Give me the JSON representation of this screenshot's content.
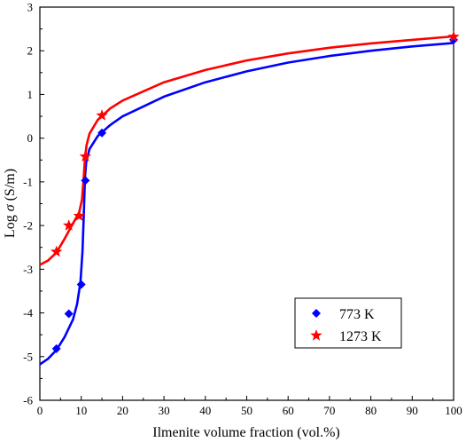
{
  "chart_data": {
    "type": "scatter",
    "xlabel": "Ilmenite volume fraction (vol.%)",
    "ylabel_prefix": "Log ",
    "ylabel_symbol": "σ",
    "ylabel_suffix": " (S/m)",
    "xlim": [
      0,
      100
    ],
    "ylim": [
      -6,
      3
    ],
    "xticks": [
      0,
      10,
      20,
      30,
      40,
      50,
      60,
      70,
      80,
      90,
      100
    ],
    "yticks": [
      -6,
      -5,
      -4,
      -3,
      -2,
      -1,
      0,
      1,
      2,
      3
    ],
    "grid": false,
    "legend_position": "bottom-right",
    "series": [
      {
        "name": "773 K",
        "marker": "diamond",
        "color": "#0000ff",
        "points": [
          [
            4,
            -4.82
          ],
          [
            7,
            -4.02
          ],
          [
            10,
            -3.35
          ],
          [
            11,
            -0.97
          ],
          [
            15,
            0.12
          ],
          [
            100,
            2.25
          ]
        ],
        "fit_curve": [
          [
            0,
            -5.18
          ],
          [
            2,
            -5.05
          ],
          [
            4,
            -4.85
          ],
          [
            6,
            -4.55
          ],
          [
            8,
            -4.15
          ],
          [
            9,
            -3.8
          ],
          [
            9.8,
            -3.3
          ],
          [
            10.3,
            -2.6
          ],
          [
            10.6,
            -1.8
          ],
          [
            10.9,
            -0.9
          ],
          [
            11.2,
            -0.55
          ],
          [
            12,
            -0.25
          ],
          [
            14,
            0.05
          ],
          [
            17,
            0.3
          ],
          [
            20,
            0.5
          ],
          [
            30,
            0.95
          ],
          [
            40,
            1.28
          ],
          [
            50,
            1.53
          ],
          [
            60,
            1.73
          ],
          [
            70,
            1.88
          ],
          [
            80,
            2.0
          ],
          [
            90,
            2.1
          ],
          [
            100,
            2.18
          ]
        ]
      },
      {
        "name": "1273 K",
        "marker": "star",
        "color": "#ff0000",
        "points": [
          [
            4,
            -2.6
          ],
          [
            7,
            -2.0
          ],
          [
            9.5,
            -1.78
          ],
          [
            11,
            -0.42
          ],
          [
            15,
            0.52
          ],
          [
            100,
            2.32
          ]
        ],
        "fit_curve": [
          [
            0,
            -2.9
          ],
          [
            2,
            -2.8
          ],
          [
            4,
            -2.62
          ],
          [
            6,
            -2.3
          ],
          [
            8,
            -1.95
          ],
          [
            9.5,
            -1.7
          ],
          [
            10.2,
            -1.4
          ],
          [
            10.6,
            -0.9
          ],
          [
            10.9,
            -0.45
          ],
          [
            11.3,
            -0.15
          ],
          [
            12,
            0.1
          ],
          [
            14,
            0.42
          ],
          [
            17,
            0.68
          ],
          [
            20,
            0.86
          ],
          [
            30,
            1.28
          ],
          [
            40,
            1.56
          ],
          [
            50,
            1.78
          ],
          [
            60,
            1.94
          ],
          [
            70,
            2.07
          ],
          [
            80,
            2.17
          ],
          [
            90,
            2.25
          ],
          [
            100,
            2.33
          ]
        ]
      }
    ]
  }
}
